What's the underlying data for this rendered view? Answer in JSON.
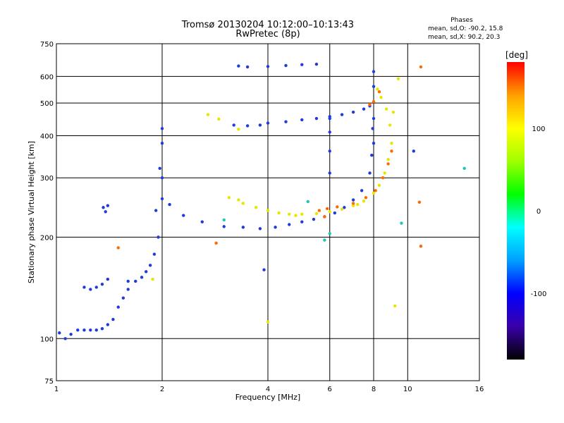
{
  "chart_data": {
    "type": "scatter",
    "title": "Tromsø 20130204 10:12:00–10:13:43",
    "subtitle": "RwPretec (8p)",
    "xlabel": "Frequency [MHz]",
    "ylabel": "Stationary phase Virtual Height [km]",
    "xscale": "log",
    "yscale": "log",
    "xlim": [
      1,
      16
    ],
    "ylim": [
      75,
      750
    ],
    "xticks": [
      1,
      2,
      4,
      6,
      8,
      10,
      16
    ],
    "xtick_labels": [
      "1",
      "2",
      "4",
      "6",
      "8",
      "10",
      "16"
    ],
    "yticks": [
      75,
      100,
      200,
      300,
      400,
      500,
      600,
      750
    ],
    "ytick_labels": [
      "75",
      "100",
      "200",
      "300",
      "400",
      "500",
      "600",
      "750"
    ],
    "grid": true,
    "annotation": {
      "title": "Phases",
      "line1": "mean, sd,O:  -90.2, 15.8",
      "line2": "mean, sd,X:  90.2, 20.3"
    },
    "colorbar": {
      "label": "[deg]",
      "range": [
        -180,
        180
      ],
      "ticks": [
        -100,
        0,
        100
      ],
      "tick_labels": [
        "-100",
        "0",
        "100"
      ],
      "colors": [
        "#000000",
        "#3a00aa",
        "#0000ff",
        "#00a0ff",
        "#00ffff",
        "#00ff00",
        "#a0ff00",
        "#ffff00",
        "#ffa000",
        "#ff0000"
      ]
    },
    "series": [
      {
        "color": "#1e3cdc",
        "points": [
          [
            1.02,
            104
          ],
          [
            1.06,
            100
          ],
          [
            1.1,
            103
          ],
          [
            1.15,
            106
          ],
          [
            1.2,
            106
          ],
          [
            1.25,
            106
          ],
          [
            1.3,
            106
          ],
          [
            1.35,
            107
          ],
          [
            1.4,
            110
          ],
          [
            1.45,
            114
          ],
          [
            1.5,
            124
          ],
          [
            1.55,
            132
          ],
          [
            1.6,
            140
          ],
          [
            1.68,
            148
          ],
          [
            1.75,
            152
          ],
          [
            1.8,
            158
          ],
          [
            1.85,
            165
          ],
          [
            1.9,
            178
          ],
          [
            1.95,
            200
          ],
          [
            2.0,
            260
          ],
          [
            2.0,
            300
          ],
          [
            2.0,
            380
          ],
          [
            2.0,
            420
          ],
          [
            1.92,
            240
          ],
          [
            1.97,
            320
          ],
          [
            1.2,
            142
          ],
          [
            1.25,
            140
          ],
          [
            1.3,
            142
          ],
          [
            1.35,
            145
          ],
          [
            1.4,
            150
          ],
          [
            1.36,
            245
          ],
          [
            1.38,
            238
          ],
          [
            2.1,
            250
          ],
          [
            2.3,
            232
          ],
          [
            2.6,
            222
          ],
          [
            3.0,
            215
          ],
          [
            3.4,
            214
          ],
          [
            3.8,
            212
          ],
          [
            4.2,
            214
          ],
          [
            4.6,
            218
          ],
          [
            5.0,
            222
          ],
          [
            5.4,
            226
          ],
          [
            5.8,
            230
          ],
          [
            6.2,
            236
          ],
          [
            6.6,
            245
          ],
          [
            7.0,
            258
          ],
          [
            7.4,
            275
          ],
          [
            7.8,
            310
          ],
          [
            8.0,
            380
          ],
          [
            8.0,
            450
          ],
          [
            8.0,
            560
          ],
          [
            8.0,
            620
          ],
          [
            7.95,
            420
          ],
          [
            7.9,
            350
          ],
          [
            6.0,
            310
          ],
          [
            6.0,
            360
          ],
          [
            6.0,
            410
          ],
          [
            6.0,
            450
          ],
          [
            3.3,
            644
          ],
          [
            3.5,
            640
          ],
          [
            4.0,
            642
          ],
          [
            4.5,
            646
          ],
          [
            5.0,
            650
          ],
          [
            5.5,
            652
          ],
          [
            3.2,
            430
          ],
          [
            3.5,
            428
          ],
          [
            3.8,
            430
          ],
          [
            4.0,
            436
          ],
          [
            4.5,
            440
          ],
          [
            5.0,
            446
          ],
          [
            5.5,
            450
          ],
          [
            6.0,
            456
          ],
          [
            6.5,
            462
          ],
          [
            7.0,
            470
          ],
          [
            7.5,
            480
          ],
          [
            7.8,
            490
          ],
          [
            3.9,
            160
          ],
          [
            1.4,
            248
          ],
          [
            1.6,
            148
          ],
          [
            10.4,
            360
          ]
        ]
      },
      {
        "color": "#e6e600",
        "points": [
          [
            3.1,
            262
          ],
          [
            3.4,
            252
          ],
          [
            3.7,
            245
          ],
          [
            4.0,
            240
          ],
          [
            4.3,
            236
          ],
          [
            4.6,
            234
          ],
          [
            5.0,
            234
          ],
          [
            5.5,
            235
          ],
          [
            6.0,
            238
          ],
          [
            6.5,
            242
          ],
          [
            7.0,
            248
          ],
          [
            7.5,
            256
          ],
          [
            8.0,
            270
          ],
          [
            8.3,
            285
          ],
          [
            8.6,
            310
          ],
          [
            8.8,
            340
          ],
          [
            9.0,
            380
          ],
          [
            8.9,
            430
          ],
          [
            8.7,
            480
          ],
          [
            8.4,
            520
          ],
          [
            8.2,
            550
          ],
          [
            3.3,
            258
          ],
          [
            4.8,
            232
          ],
          [
            7.2,
            250
          ],
          [
            9.1,
            470
          ],
          [
            2.7,
            462
          ],
          [
            2.9,
            448
          ],
          [
            3.3,
            418
          ],
          [
            4.0,
            112
          ],
          [
            9.2,
            125
          ],
          [
            1.88,
            150
          ],
          [
            9.4,
            590
          ]
        ]
      },
      {
        "color": "#ff6a00",
        "points": [
          [
            5.6,
            240
          ],
          [
            5.9,
            243
          ],
          [
            6.3,
            246
          ],
          [
            7.0,
            252
          ],
          [
            7.6,
            262
          ],
          [
            8.1,
            275
          ],
          [
            8.5,
            300
          ],
          [
            8.8,
            330
          ],
          [
            9.0,
            360
          ],
          [
            7.8,
            495
          ],
          [
            8.0,
            505
          ],
          [
            8.3,
            540
          ],
          [
            1.5,
            186
          ],
          [
            2.85,
            192
          ],
          [
            10.9,
            188
          ],
          [
            10.8,
            254
          ],
          [
            10.9,
            640
          ],
          [
            5.8,
            230
          ]
        ]
      },
      {
        "color": "#20c8b4",
        "points": [
          [
            5.8,
            196
          ],
          [
            5.2,
            255
          ],
          [
            9.6,
            220
          ],
          [
            14.5,
            320
          ],
          [
            3.0,
            225
          ],
          [
            6.0,
            205
          ]
        ]
      }
    ]
  }
}
